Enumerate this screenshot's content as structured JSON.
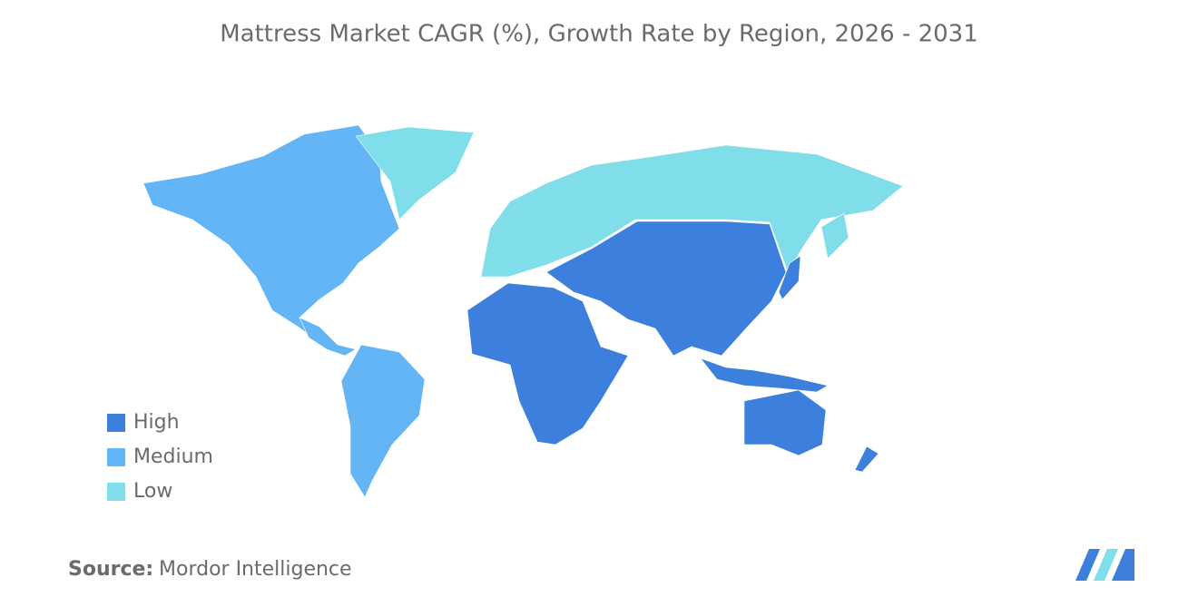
{
  "title": "Mattress Market CAGR (%), Growth Rate by Region, 2026 - 2031",
  "legend": {
    "items": [
      {
        "label": "High",
        "color": "#3d7fdc"
      },
      {
        "label": "Medium",
        "color": "#64b5f6"
      },
      {
        "label": "Low",
        "color": "#80deea"
      }
    ]
  },
  "source": {
    "label": "Source:",
    "text": "Mordor Intelligence"
  }
}
